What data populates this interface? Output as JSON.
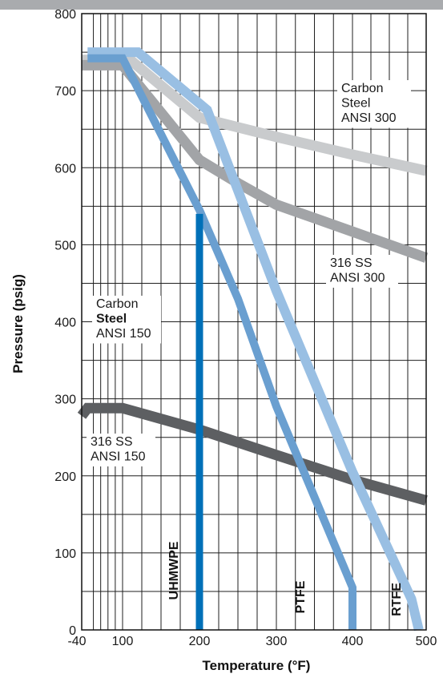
{
  "chart_data": {
    "type": "line",
    "xlabel": "Temperature (°F)",
    "ylabel": "Pressure (psig)",
    "xlim": [
      -40,
      500
    ],
    "ylim": [
      0,
      800
    ],
    "x_ticks": [
      "-40",
      "100",
      "200",
      "300",
      "400",
      "500"
    ],
    "y_ticks": [
      "0",
      "100",
      "200",
      "300",
      "400",
      "500",
      "600",
      "700",
      "800"
    ],
    "grid": true,
    "series": [
      {
        "color": "#c9cbcd",
        "points": [
          [
            -40,
            740
          ],
          [
            110,
            740
          ],
          [
            200,
            665
          ],
          [
            300,
            640
          ],
          [
            400,
            617
          ],
          [
            500,
            596
          ]
        ]
      },
      {
        "color": "#a2a4a7",
        "points": [
          [
            -40,
            733
          ],
          [
            100,
            733
          ],
          [
            200,
            610
          ],
          [
            250,
            580
          ],
          [
            300,
            552
          ],
          [
            400,
            517
          ],
          [
            500,
            483
          ]
        ]
      },
      {
        "color": "#5d5f62",
        "points": [
          [
            -40,
            278
          ],
          [
            -20,
            288
          ],
          [
            100,
            288
          ],
          [
            200,
            260
          ],
          [
            300,
            227
          ],
          [
            400,
            195
          ],
          [
            500,
            168
          ]
        ]
      },
      {
        "color": "#99bfe3",
        "points": [
          [
            -20,
            750
          ],
          [
            120,
            750
          ],
          [
            210,
            675
          ],
          [
            300,
            440
          ],
          [
            400,
            205
          ],
          [
            480,
            40
          ],
          [
            490,
            0
          ]
        ]
      },
      {
        "color": "#6a9fd0",
        "points": [
          [
            -20,
            742
          ],
          [
            100,
            742
          ],
          [
            200,
            545
          ],
          [
            250,
            430
          ],
          [
            300,
            290
          ],
          [
            400,
            55
          ],
          [
            400,
            0
          ]
        ]
      },
      {
        "color": "#0070b8",
        "points": [
          [
            200,
            540
          ],
          [
            200,
            0
          ]
        ]
      }
    ],
    "annotations": [
      {
        "lines": [
          "Carbon",
          "Steel",
          "ANSI 300"
        ],
        "bold_line": -1
      },
      {
        "lines": [
          "316 SS",
          "ANSI 300"
        ],
        "bold_line": -1
      },
      {
        "lines": [
          "Carbon",
          "Steel",
          "ANSI 150"
        ],
        "bold_line": 1
      },
      {
        "lines": [
          "316 SS",
          "ANSI 150"
        ],
        "bold_line": -1
      }
    ],
    "limit_labels": [
      "UHMWPE",
      "PTFE",
      "RTFE"
    ]
  }
}
